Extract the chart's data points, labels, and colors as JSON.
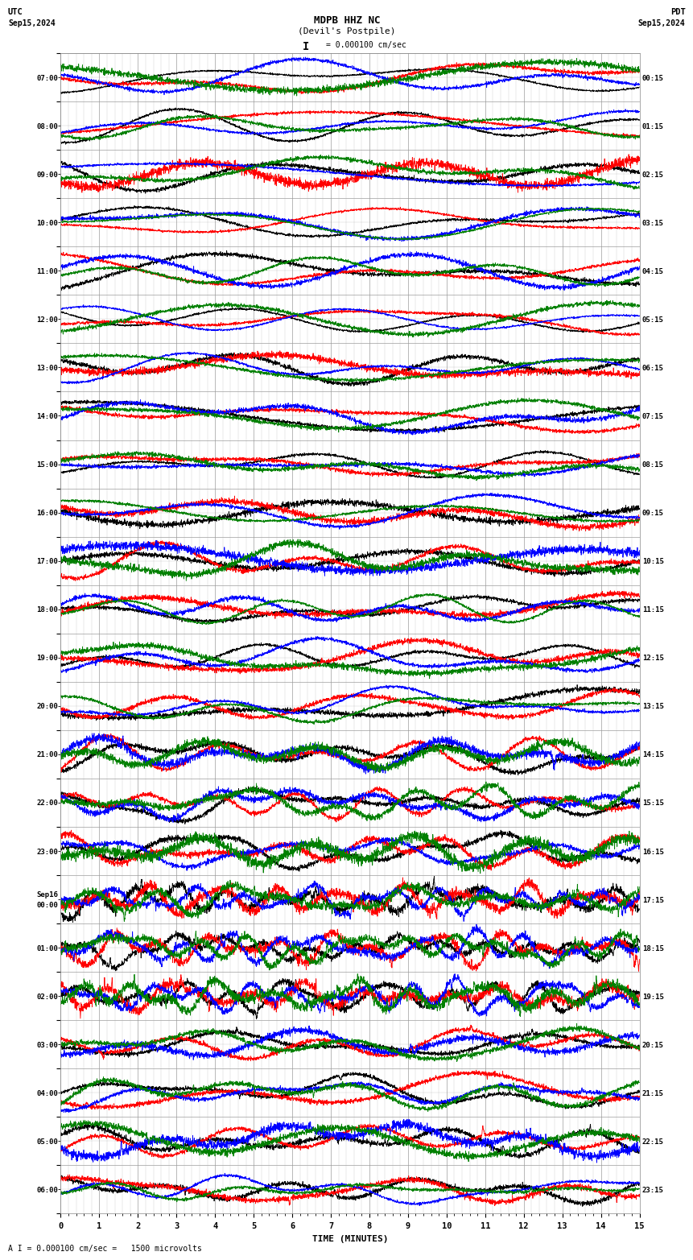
{
  "title_line1": "MDPB HHZ NC",
  "title_line2": "(Devil's Postpile)",
  "scale_label": "I = 0.000100 cm/sec",
  "bottom_label": "A I = 0.000100 cm/sec =   1500 microvolts",
  "utc_label": "UTC",
  "pdt_label": "PDT",
  "date_left": "Sep15,2024",
  "date_right": "Sep15,2024",
  "xlabel": "TIME (MINUTES)",
  "time_labels_left": [
    "07:00",
    "08:00",
    "09:00",
    "10:00",
    "11:00",
    "12:00",
    "13:00",
    "14:00",
    "15:00",
    "16:00",
    "17:00",
    "18:00",
    "19:00",
    "20:00",
    "21:00",
    "22:00",
    "23:00",
    "Sep16\n00:00",
    "01:00",
    "02:00",
    "03:00",
    "04:00",
    "05:00",
    "06:00"
  ],
  "time_labels_right": [
    "00:15",
    "01:15",
    "02:15",
    "03:15",
    "04:15",
    "05:15",
    "06:15",
    "07:15",
    "08:15",
    "09:15",
    "10:15",
    "11:15",
    "12:15",
    "13:15",
    "14:15",
    "15:15",
    "16:15",
    "17:15",
    "18:15",
    "19:15",
    "20:15",
    "21:15",
    "22:15",
    "23:15"
  ],
  "num_rows": 24,
  "xmin": 0,
  "xmax": 15,
  "colors": [
    "black",
    "red",
    "blue",
    "green"
  ],
  "bg_color": "white",
  "grid_color": "#999999",
  "line_width": 0.6
}
